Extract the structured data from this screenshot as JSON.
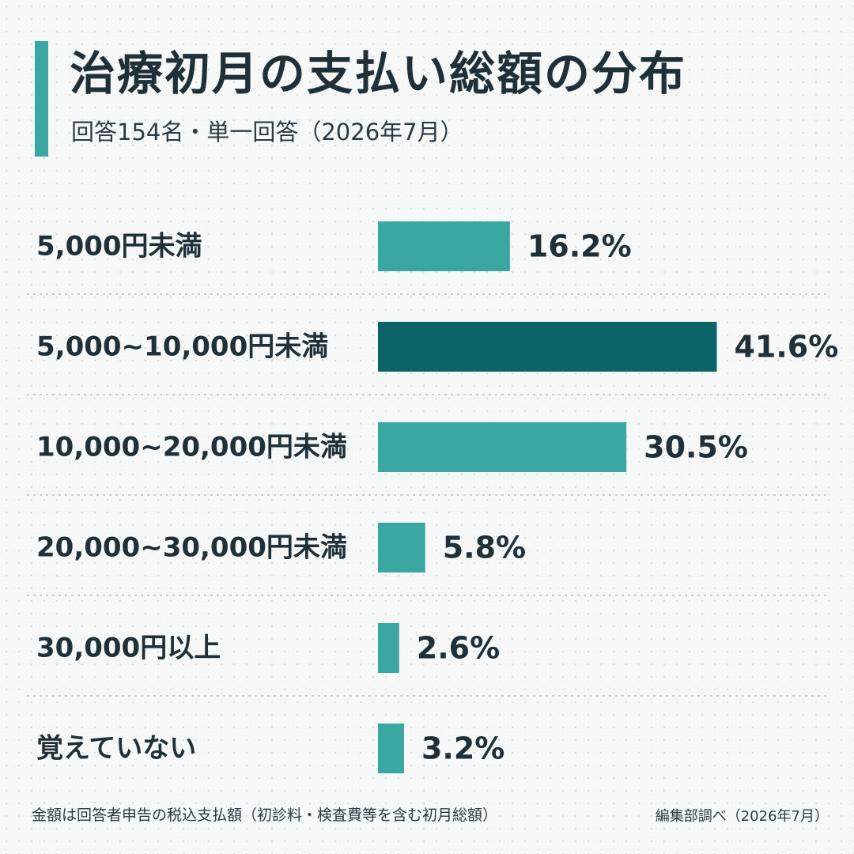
{
  "title": "治療初月の支払い総額の分布",
  "subtitle": "回答154名・単一回答（2026年7月）",
  "footnote": "金額は回答者申告の税込支払額（初診料・検査費等を含む初月総額）",
  "source": "編集部調べ（2026年7月）",
  "colors": {
    "bar": "#3aa7a2",
    "bar_highlight": "#0b6468",
    "accent": "#3aa7a2",
    "text": "#1f3038",
    "divider": "#c9cfd0"
  },
  "chart_data": {
    "type": "bar",
    "orientation": "horizontal",
    "unit": "%",
    "categories": [
      "5,000円未満",
      "5,000~10,000円未満",
      "10,000~20,000円未満",
      "20,000~30,000円未満",
      "30,000円以上",
      "覚えていない"
    ],
    "values": [
      16.2,
      41.6,
      30.5,
      5.8,
      2.6,
      3.2
    ],
    "data_labels": [
      "16.2%",
      "41.6%",
      "30.5%",
      "5.8%",
      "2.6%",
      "3.2%"
    ],
    "highlight_index": 1,
    "grid": false,
    "legend": "none"
  }
}
